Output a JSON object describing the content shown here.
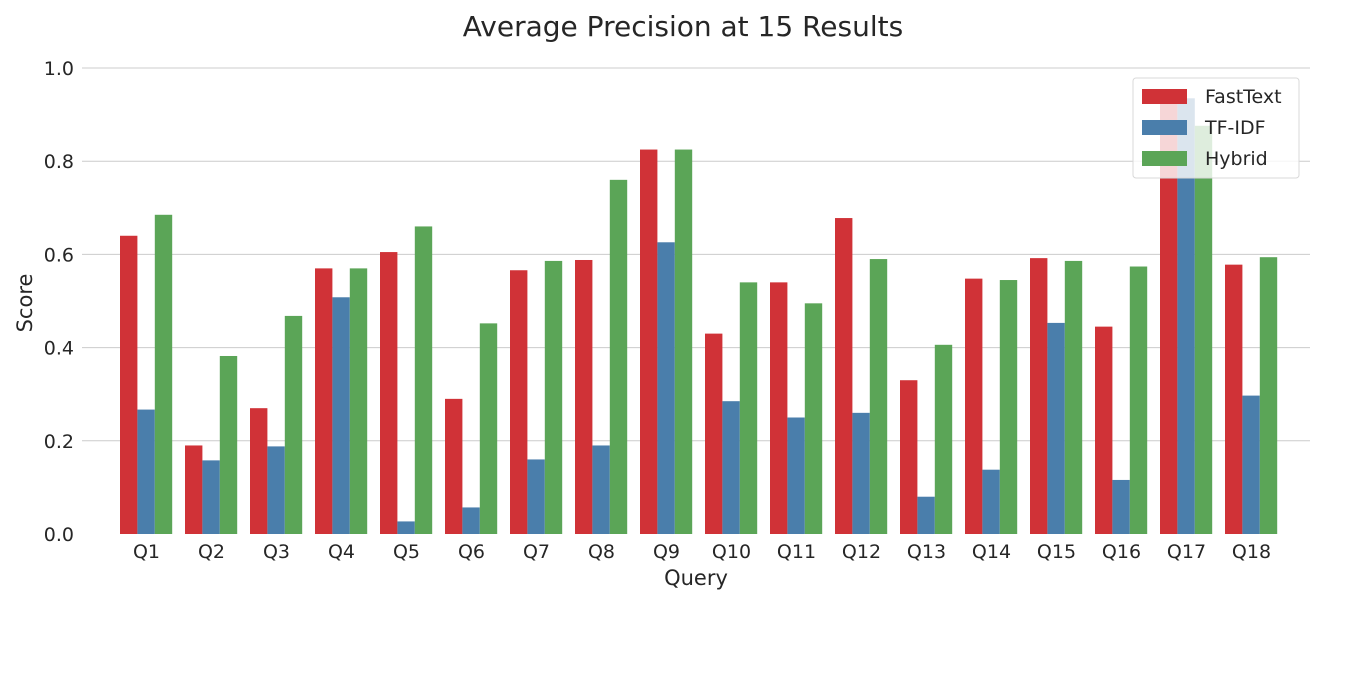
{
  "chart_data": {
    "type": "bar",
    "title": "Average Precision at 15 Results",
    "xlabel": "Query",
    "ylabel": "Score",
    "ylim": [
      0,
      1.0
    ],
    "yticks": [
      "0.0",
      "0.2",
      "0.4",
      "0.6",
      "0.8",
      "1.0"
    ],
    "grid": "horizontal",
    "legend_position": "top-right",
    "categories": [
      "Q1",
      "Q2",
      "Q3",
      "Q4",
      "Q5",
      "Q6",
      "Q7",
      "Q8",
      "Q9",
      "Q10",
      "Q11",
      "Q12",
      "Q13",
      "Q14",
      "Q15",
      "Q16",
      "Q17",
      "Q18"
    ],
    "series": [
      {
        "name": "FastText",
        "color": "#d03237",
        "values": [
          0.64,
          0.19,
          0.27,
          0.57,
          0.605,
          0.29,
          0.566,
          0.588,
          0.825,
          0.43,
          0.54,
          0.678,
          0.33,
          0.548,
          0.592,
          0.445,
          0.93,
          0.578
        ]
      },
      {
        "name": "TF-IDF",
        "color": "#4a7eab",
        "values": [
          0.267,
          0.158,
          0.188,
          0.508,
          0.027,
          0.057,
          0.16,
          0.19,
          0.626,
          0.285,
          0.25,
          0.26,
          0.08,
          0.138,
          0.453,
          0.116,
          0.935,
          0.297
        ]
      },
      {
        "name": "Hybrid",
        "color": "#5ba557",
        "values": [
          0.685,
          0.382,
          0.468,
          0.57,
          0.66,
          0.452,
          0.586,
          0.76,
          0.825,
          0.54,
          0.495,
          0.59,
          0.406,
          0.545,
          0.586,
          0.574,
          0.876,
          0.594
        ]
      }
    ]
  }
}
